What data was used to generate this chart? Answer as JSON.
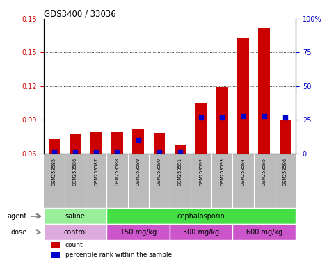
{
  "title": "GDS3400 / 33036",
  "samples": [
    "GSM253585",
    "GSM253586",
    "GSM253587",
    "GSM253588",
    "GSM253589",
    "GSM253590",
    "GSM253591",
    "GSM253592",
    "GSM253593",
    "GSM253594",
    "GSM253595",
    "GSM253596"
  ],
  "bar_heights": [
    0.073,
    0.077,
    0.079,
    0.079,
    0.082,
    0.078,
    0.068,
    0.105,
    0.119,
    0.163,
    0.172,
    0.09
  ],
  "blue_dot_y": [
    0.061,
    0.061,
    0.061,
    0.061,
    0.072,
    0.061,
    0.061,
    0.092,
    0.092,
    0.093,
    0.093,
    0.092
  ],
  "bar_color": "#cc0000",
  "blue_color": "#0000cc",
  "ylim_left": [
    0.06,
    0.18
  ],
  "ylim_right": [
    0,
    100
  ],
  "yticks_left": [
    0.06,
    0.09,
    0.12,
    0.15,
    0.18
  ],
  "yticks_right": [
    0,
    25,
    50,
    75,
    100
  ],
  "ytick_labels_right": [
    "0",
    "25",
    "50",
    "75",
    "100%"
  ],
  "agent_groups": [
    {
      "label": "saline",
      "start": 0,
      "end": 3,
      "color": "#99ee99"
    },
    {
      "label": "cephalosporin",
      "start": 3,
      "end": 12,
      "color": "#44dd44"
    }
  ],
  "dose_groups": [
    {
      "label": "control",
      "start": 0,
      "end": 3,
      "color": "#ddaadd"
    },
    {
      "label": "150 mg/kg",
      "start": 3,
      "end": 6,
      "color": "#cc55cc"
    },
    {
      "label": "300 mg/kg",
      "start": 6,
      "end": 9,
      "color": "#cc55cc"
    },
    {
      "label": "600 mg/kg",
      "start": 9,
      "end": 12,
      "color": "#cc55cc"
    }
  ],
  "agent_label": "agent",
  "dose_label": "dose",
  "legend_count_label": "count",
  "legend_percentile_label": "percentile rank within the sample",
  "background_color": "#ffffff",
  "tick_area_color": "#bbbbbb",
  "grid_color": "#000000",
  "bar_width": 0.55
}
